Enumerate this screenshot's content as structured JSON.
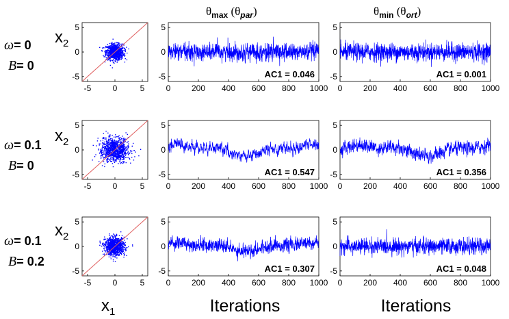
{
  "column_titles": [
    {
      "sym": "θ",
      "sub": "max",
      "paren_sym": "θ",
      "paren_sub": "par"
    },
    {
      "sym": "θ",
      "sub": "min",
      "paren_sym": "θ",
      "paren_sub": "ort"
    }
  ],
  "row_labels": [
    {
      "omega": "ω",
      "omega_val": "= 0",
      "b": "B",
      "b_val": "= 0"
    },
    {
      "omega": "ω",
      "omega_val": "= 0.1",
      "b": "B",
      "b_val": "= 0"
    },
    {
      "omega": "ω",
      "omega_val": "= 0.1",
      "b": "B",
      "b_val": "= 0.2"
    }
  ],
  "scatter_axis": {
    "x_label": "x",
    "x_sub": "1",
    "y_label": "x",
    "y_sub": "2"
  },
  "trace_x_label": "Iterations",
  "colors": {
    "series": "#0000ff",
    "diagonal": "#e06060",
    "axis": "#000000"
  },
  "chart_data": [
    {
      "type": "scatter",
      "row": 0,
      "title": "",
      "xlabel": "x1",
      "ylabel": "x2",
      "xlim": [
        -6,
        6
      ],
      "ylim": [
        -6,
        6
      ],
      "xticks": [
        -5,
        0,
        5
      ],
      "yticks": [
        -5,
        0,
        5
      ],
      "n_points": 1000,
      "center": [
        0,
        0
      ],
      "spread": [
        0.8,
        0.8
      ],
      "diagonal": true
    },
    {
      "type": "line",
      "row": 0,
      "col": 0,
      "xlim": [
        0,
        1000
      ],
      "ylim": [
        -6,
        6
      ],
      "xticks": [
        0,
        200,
        400,
        600,
        800,
        1000
      ],
      "yticks": [
        -5,
        0,
        5
      ],
      "ac1_label": "AC1 = 0.046",
      "ac1": 0.046,
      "mean": 0,
      "sd": 0.9,
      "drift_amp": 0
    },
    {
      "type": "line",
      "row": 0,
      "col": 1,
      "xlim": [
        0,
        1000
      ],
      "ylim": [
        -6,
        6
      ],
      "xticks": [
        0,
        200,
        400,
        600,
        800,
        1000
      ],
      "yticks": [
        -5,
        0,
        5
      ],
      "ac1_label": "AC1 = 0.001",
      "ac1": 0.001,
      "mean": 0,
      "sd": 0.9,
      "drift_amp": 0
    },
    {
      "type": "scatter",
      "row": 1,
      "title": "",
      "xlabel": "x1",
      "ylabel": "x2",
      "xlim": [
        -6,
        6
      ],
      "ylim": [
        -6,
        6
      ],
      "xticks": [
        -5,
        0,
        5
      ],
      "yticks": [
        -5,
        0,
        5
      ],
      "n_points": 1000,
      "center": [
        0,
        0
      ],
      "spread": [
        1.2,
        1.2
      ],
      "diagonal": true
    },
    {
      "type": "line",
      "row": 1,
      "col": 0,
      "xlim": [
        0,
        1000
      ],
      "ylim": [
        -6,
        6
      ],
      "xticks": [
        0,
        200,
        400,
        600,
        800,
        1000
      ],
      "yticks": [
        -5,
        0,
        5
      ],
      "ac1_label": "AC1 = 0.547",
      "ac1": 0.547,
      "mean": 0,
      "sd": 0.6,
      "drift_amp": 1.3
    },
    {
      "type": "line",
      "row": 1,
      "col": 1,
      "xlim": [
        0,
        1000
      ],
      "ylim": [
        -6,
        6
      ],
      "xticks": [
        0,
        200,
        400,
        600,
        800,
        1000
      ],
      "yticks": [
        -5,
        0,
        5
      ],
      "ac1_label": "AC1 = 0.356",
      "ac1": 0.356,
      "mean": 0,
      "sd": 0.7,
      "drift_amp": 1.3
    },
    {
      "type": "scatter",
      "row": 2,
      "title": "",
      "xlabel": "x1",
      "ylabel": "x2",
      "xlim": [
        -6,
        6
      ],
      "ylim": [
        -6,
        6
      ],
      "xticks": [
        -5,
        0,
        5
      ],
      "yticks": [
        -5,
        0,
        5
      ],
      "n_points": 1000,
      "center": [
        0,
        0
      ],
      "spread": [
        0.9,
        0.9
      ],
      "diagonal": true
    },
    {
      "type": "line",
      "row": 2,
      "col": 0,
      "xlim": [
        0,
        1000
      ],
      "ylim": [
        -6,
        6
      ],
      "xticks": [
        0,
        200,
        400,
        600,
        800,
        1000
      ],
      "yticks": [
        -5,
        0,
        5
      ],
      "ac1_label": "AC1 = 0.307",
      "ac1": 0.307,
      "mean": 0,
      "sd": 0.7,
      "drift_amp": 0.9
    },
    {
      "type": "line",
      "row": 2,
      "col": 1,
      "xlim": [
        0,
        1000
      ],
      "ylim": [
        -6,
        6
      ],
      "xticks": [
        0,
        200,
        400,
        600,
        800,
        1000
      ],
      "yticks": [
        -5,
        0,
        5
      ],
      "ac1_label": "AC1 = 0.048",
      "ac1": 0.048,
      "mean": 0,
      "sd": 0.8,
      "drift_amp": 0
    }
  ]
}
